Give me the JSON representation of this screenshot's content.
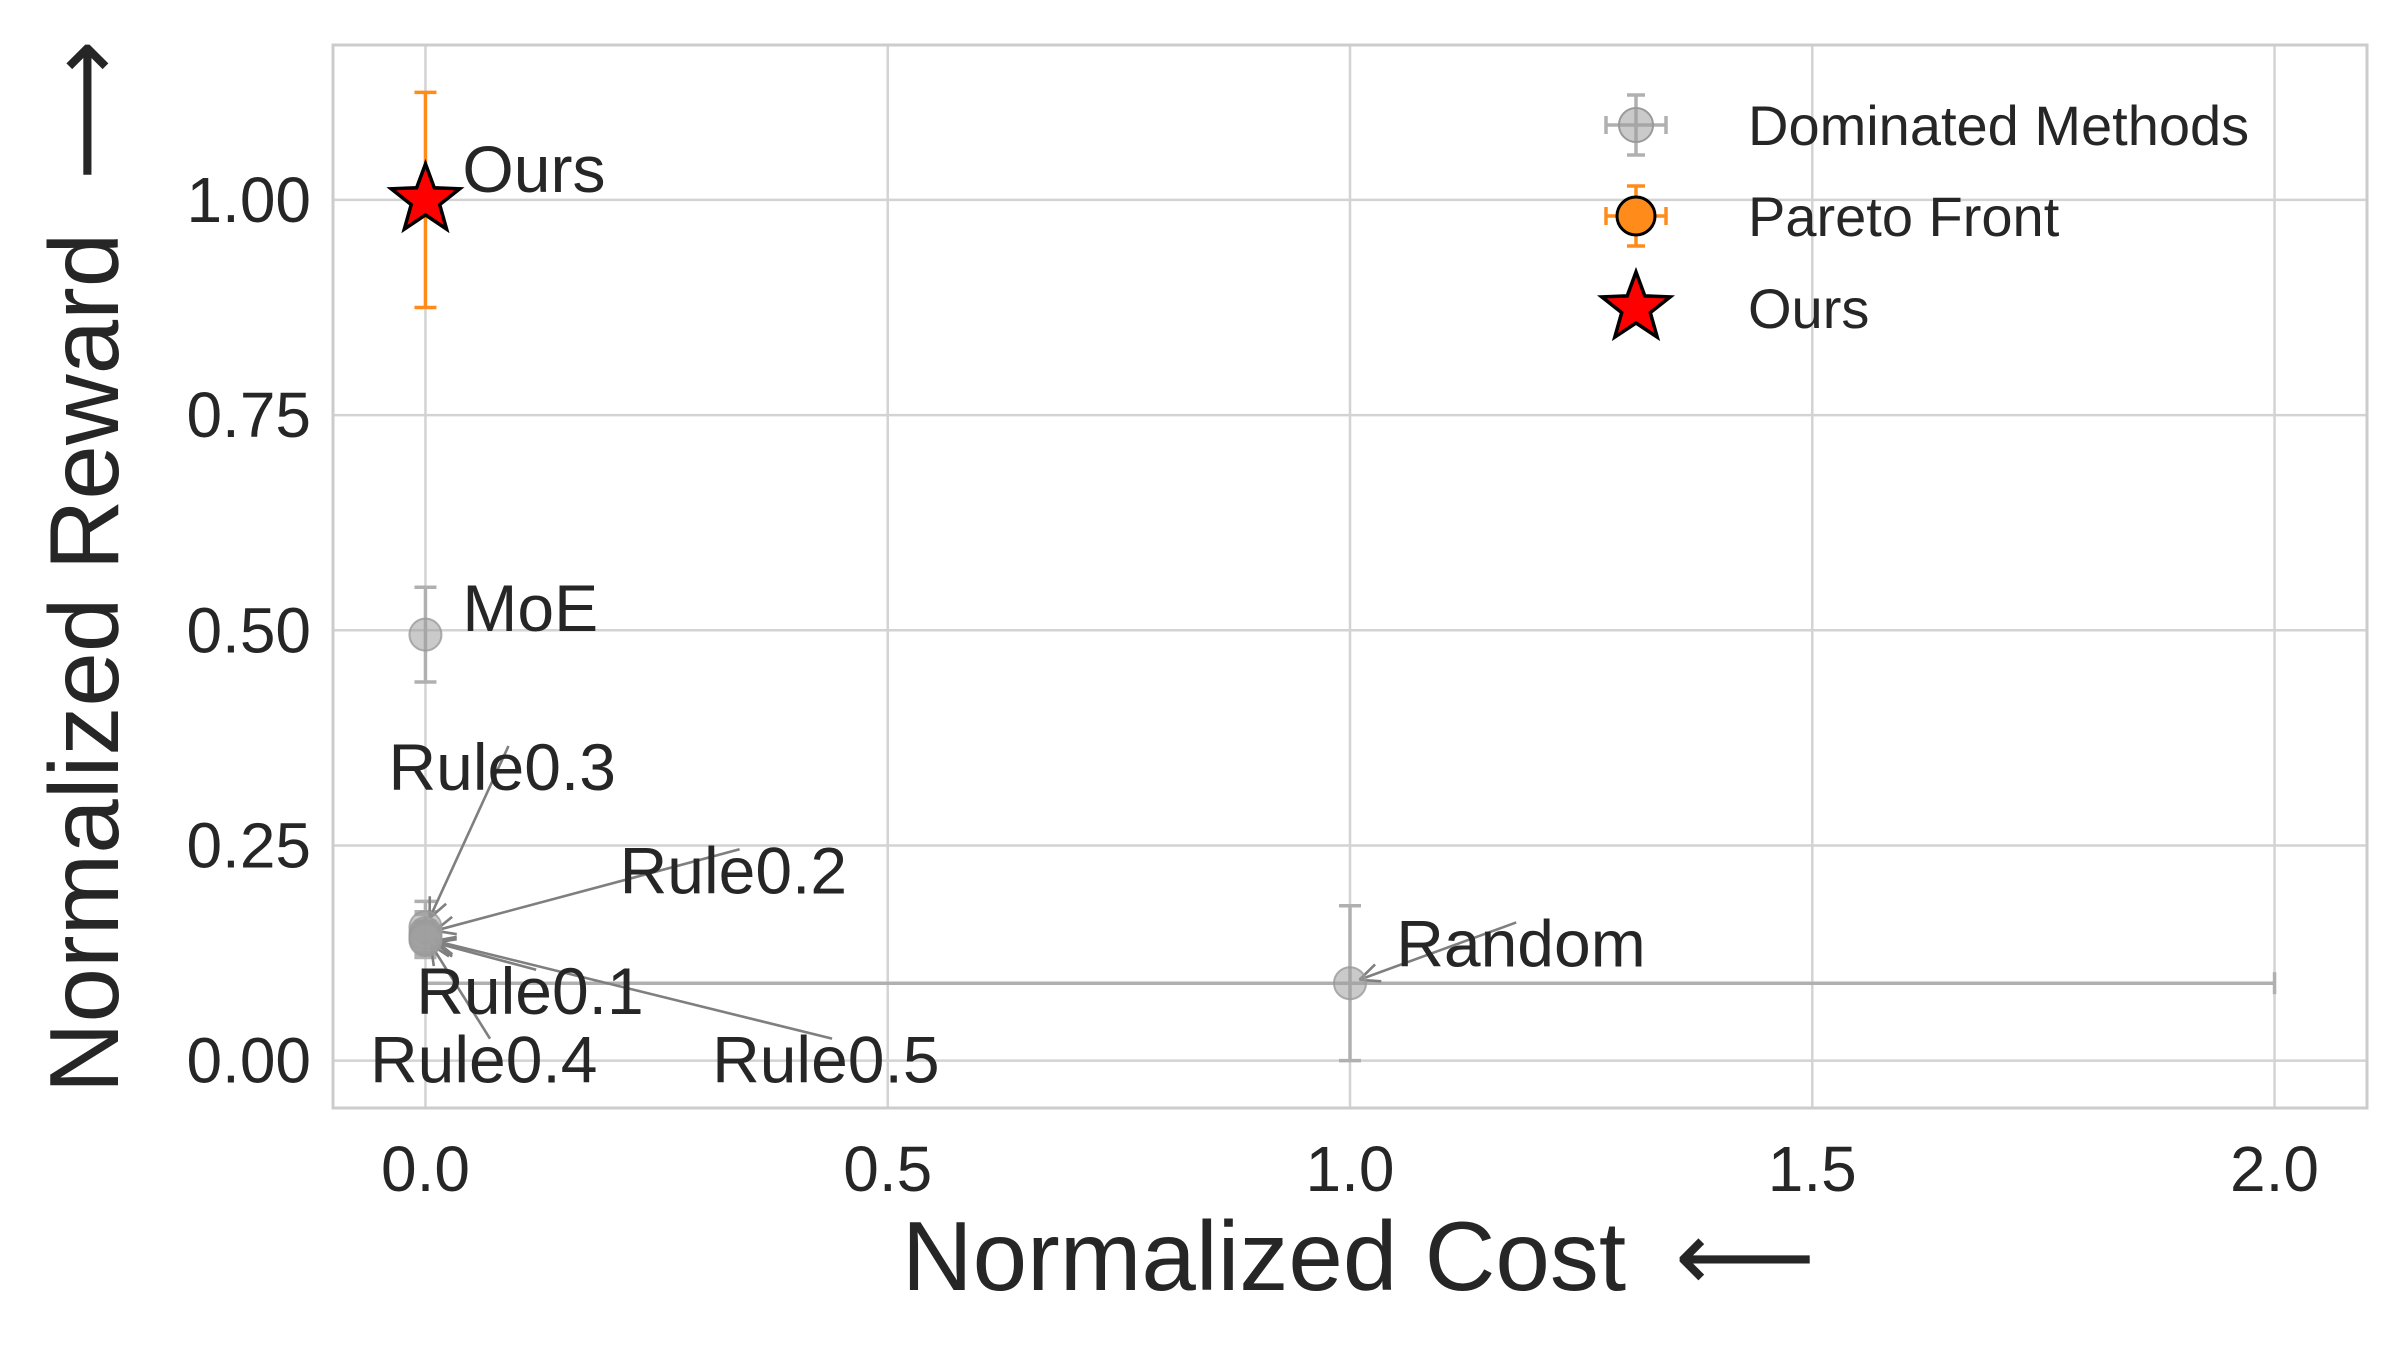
{
  "chart_data": {
    "type": "scatter",
    "xlabel": "Normalized Cost",
    "ylabel": "Normalized Reward",
    "xlabel_arrow": "⟵",
    "ylabel_arrow": "⟶",
    "xlim": [
      -0.1,
      2.1
    ],
    "ylim": [
      -0.055,
      1.18
    ],
    "xticks": [
      0.0,
      0.5,
      1.0,
      1.5,
      2.0
    ],
    "xtick_labels": [
      "0.0",
      "0.5",
      "1.0",
      "1.5",
      "2.0"
    ],
    "yticks": [
      0.0,
      0.25,
      0.5,
      0.75,
      1.0
    ],
    "ytick_labels": [
      "0.00",
      "0.25",
      "0.50",
      "0.75",
      "1.00"
    ],
    "grid": true,
    "legend_position": "top-right",
    "colors": {
      "dominated": "#9e9e9e",
      "pareto": "#ff8c1a",
      "ours": "#ff0000",
      "grid": "#d3d3d3",
      "arrow": "#7f7f7f"
    },
    "series": [
      {
        "name": "Dominated Methods",
        "marker": "circle",
        "points": [
          {
            "label": "MoE",
            "x": 0.0,
            "y": 0.495,
            "yerr": 0.055,
            "xerr": 0.0
          },
          {
            "label": "Rule0.3",
            "x": 0.0,
            "y": 0.155,
            "yerr": 0.03,
            "xerr": 0.0
          },
          {
            "label": "Rule0.2",
            "x": 0.0,
            "y": 0.148,
            "yerr": 0.025,
            "xerr": 0.0
          },
          {
            "label": "Rule0.1",
            "x": 0.0,
            "y": 0.14,
            "yerr": 0.02,
            "xerr": 0.0
          },
          {
            "label": "Rule0.4",
            "x": 0.0,
            "y": 0.145,
            "yerr": 0.025,
            "xerr": 0.0
          },
          {
            "label": "Rule0.5",
            "x": 0.0,
            "y": 0.142,
            "yerr": 0.02,
            "xerr": 0.0
          },
          {
            "label": "Random",
            "x": 1.0,
            "y": 0.09,
            "yerr": 0.09,
            "xerr": 1.0
          }
        ]
      },
      {
        "name": "Pareto Front",
        "marker": "circle",
        "points": []
      },
      {
        "name": "Ours",
        "marker": "star",
        "points": [
          {
            "label": "Ours",
            "x": 0.0,
            "y": 1.0,
            "yerr": 0.125,
            "xerr": 0.0
          }
        ]
      }
    ],
    "annotations": [
      {
        "text": "Ours",
        "x": 0.0,
        "y": 1.0,
        "text_x": 0.04,
        "text_y": 1.035,
        "arrow": false
      },
      {
        "text": "MoE",
        "x": 0.0,
        "y": 0.495,
        "text_x": 0.04,
        "text_y": 0.525,
        "arrow": false
      },
      {
        "text": "Rule0.3",
        "x": 0.0,
        "y": 0.155,
        "text_x": -0.04,
        "text_y": 0.34,
        "arrow": true
      },
      {
        "text": "Rule0.2",
        "x": 0.0,
        "y": 0.148,
        "text_x": 0.21,
        "text_y": 0.22,
        "arrow": true
      },
      {
        "text": "Rule0.1",
        "x": 0.0,
        "y": 0.14,
        "text_x": -0.01,
        "text_y": 0.08,
        "arrow": true
      },
      {
        "text": "Rule0.4",
        "x": 0.0,
        "y": 0.145,
        "text_x": -0.06,
        "text_y": 0.0,
        "arrow": true
      },
      {
        "text": "Rule0.5",
        "x": 0.0,
        "y": 0.142,
        "text_x": 0.31,
        "text_y": 0.0,
        "arrow": true
      },
      {
        "text": "Random",
        "x": 1.0,
        "y": 0.09,
        "text_x": 1.05,
        "text_y": 0.135,
        "arrow": true
      }
    ]
  }
}
